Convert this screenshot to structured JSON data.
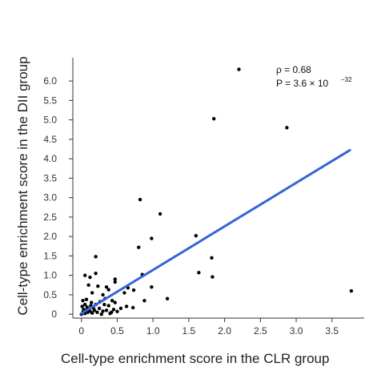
{
  "chart_data": {
    "type": "scatter",
    "xlabel": "Cell-type enrichment score in the CLR group",
    "ylabel": "Cell-type enrichment score in the DII group",
    "xlim": [
      -0.12,
      3.95
    ],
    "ylim": [
      -0.1,
      6.6
    ],
    "xticks": [
      0,
      0.5,
      1.0,
      1.5,
      2.0,
      2.5,
      3.0,
      3.5
    ],
    "xtick_labels": [
      "0",
      "0.5",
      "1.0",
      "1.5",
      "2.0",
      "2.5",
      "3.0",
      "3.5"
    ],
    "yticks": [
      0,
      0.5,
      1.0,
      1.5,
      2.0,
      2.5,
      3.0,
      3.5,
      4.0,
      4.5,
      5.0,
      5.5,
      6.0
    ],
    "ytick_labels": [
      "0",
      "0.5",
      "1.0",
      "1.5",
      "2.0",
      "2.5",
      "3.0",
      "3.5",
      "4.0",
      "4.5",
      "5.0",
      "5.5",
      "6.0"
    ],
    "grid": false,
    "annotation": {
      "rho_label": "ρ = 0.68",
      "p_label": "P = 3.6 × 10",
      "p_exponent": "−32"
    },
    "fit_line": {
      "x": [
        0,
        3.75
      ],
      "y": [
        0.02,
        4.22
      ]
    },
    "colors": {
      "points": "#000000",
      "fit": "#3565d6",
      "axis": "#333333"
    },
    "points": [
      [
        2.2,
        6.3
      ],
      [
        1.85,
        5.03
      ],
      [
        2.87,
        4.8
      ],
      [
        0.82,
        2.95
      ],
      [
        1.1,
        2.58
      ],
      [
        1.6,
        2.02
      ],
      [
        0.98,
        1.95
      ],
      [
        0.8,
        1.72
      ],
      [
        1.82,
        1.45
      ],
      [
        1.64,
        1.07
      ],
      [
        1.83,
        0.96
      ],
      [
        0.2,
        1.48
      ],
      [
        0.05,
        1.0
      ],
      [
        0.2,
        1.05
      ],
      [
        0.12,
        0.95
      ],
      [
        0.47,
        0.9
      ],
      [
        0.85,
        1.02
      ],
      [
        0.47,
        0.83
      ],
      [
        0.1,
        0.75
      ],
      [
        0.23,
        0.72
      ],
      [
        0.35,
        0.7
      ],
      [
        0.65,
        0.68
      ],
      [
        0.73,
        0.62
      ],
      [
        0.98,
        0.7
      ],
      [
        0.38,
        0.63
      ],
      [
        0.6,
        0.55
      ],
      [
        0.15,
        0.55
      ],
      [
        0.3,
        0.5
      ],
      [
        1.2,
        0.4
      ],
      [
        0.88,
        0.35
      ],
      [
        0.43,
        0.35
      ],
      [
        0.33,
        0.4
      ],
      [
        0.63,
        0.2
      ],
      [
        0.72,
        0.17
      ],
      [
        0.55,
        0.15
      ],
      [
        0.5,
        0.07
      ],
      [
        0.42,
        0.05
      ],
      [
        0.3,
        0.08
      ],
      [
        0.02,
        0.35
      ],
      [
        0.05,
        0.25
      ],
      [
        0.08,
        0.18
      ],
      [
        0.1,
        0.12
      ],
      [
        0.02,
        0.05
      ],
      [
        0.0,
        0.0
      ],
      [
        0.05,
        0.02
      ],
      [
        0.12,
        0.08
      ],
      [
        0.18,
        0.1
      ],
      [
        0.15,
        0.03
      ],
      [
        0.22,
        0.05
      ],
      [
        0.25,
        0.15
      ],
      [
        0.28,
        0.0
      ],
      [
        0.2,
        0.25
      ],
      [
        0.35,
        0.1
      ],
      [
        0.38,
        0.22
      ],
      [
        0.4,
        0.02
      ],
      [
        0.45,
        0.12
      ],
      [
        0.47,
        0.3
      ],
      [
        0.03,
        0.12
      ],
      [
        0.07,
        0.38
      ],
      [
        0.14,
        0.3
      ],
      [
        0.01,
        0.2
      ],
      [
        0.09,
        0.05
      ],
      [
        0.17,
        0.15
      ],
      [
        0.26,
        0.32
      ],
      [
        0.32,
        0.25
      ],
      [
        0.06,
        0.1
      ],
      [
        0.13,
        0.22
      ],
      [
        3.77,
        0.6
      ]
    ]
  }
}
